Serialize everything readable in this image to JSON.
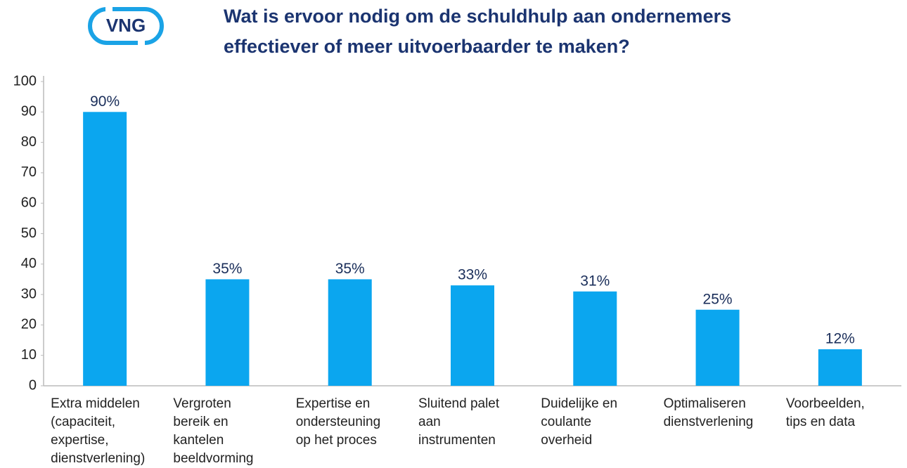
{
  "logo": {
    "text": "VNG"
  },
  "chart_data": {
    "type": "bar",
    "title": "Wat is ervoor nodig om de schuldhulp aan ondernemers\neffectiever of meer uitvoerbaarder te maken?",
    "categories": [
      "Extra middelen\n(capaciteit,\nexpertise,\ndienstverlening)",
      "Vergroten\nbereik en\nkantelen\nbeeldvorming",
      "Expertise en\nondersteuning\nop het proces",
      "Sluitend palet\naan\ninstrumenten",
      "Duidelijke en\ncoulante\noverheid",
      "Optimaliseren\ndienstverlening",
      "Voorbeelden,\ntips en data"
    ],
    "values": [
      90,
      35,
      35,
      33,
      31,
      25,
      12
    ],
    "value_labels": [
      "90%",
      "35%",
      "35%",
      "33%",
      "31%",
      "25%",
      "12%"
    ],
    "color": "#0ba6ef",
    "ylim": [
      0,
      100
    ],
    "yticks": [
      0,
      10,
      20,
      30,
      40,
      50,
      60,
      70,
      80,
      90,
      100
    ],
    "grid": false
  }
}
